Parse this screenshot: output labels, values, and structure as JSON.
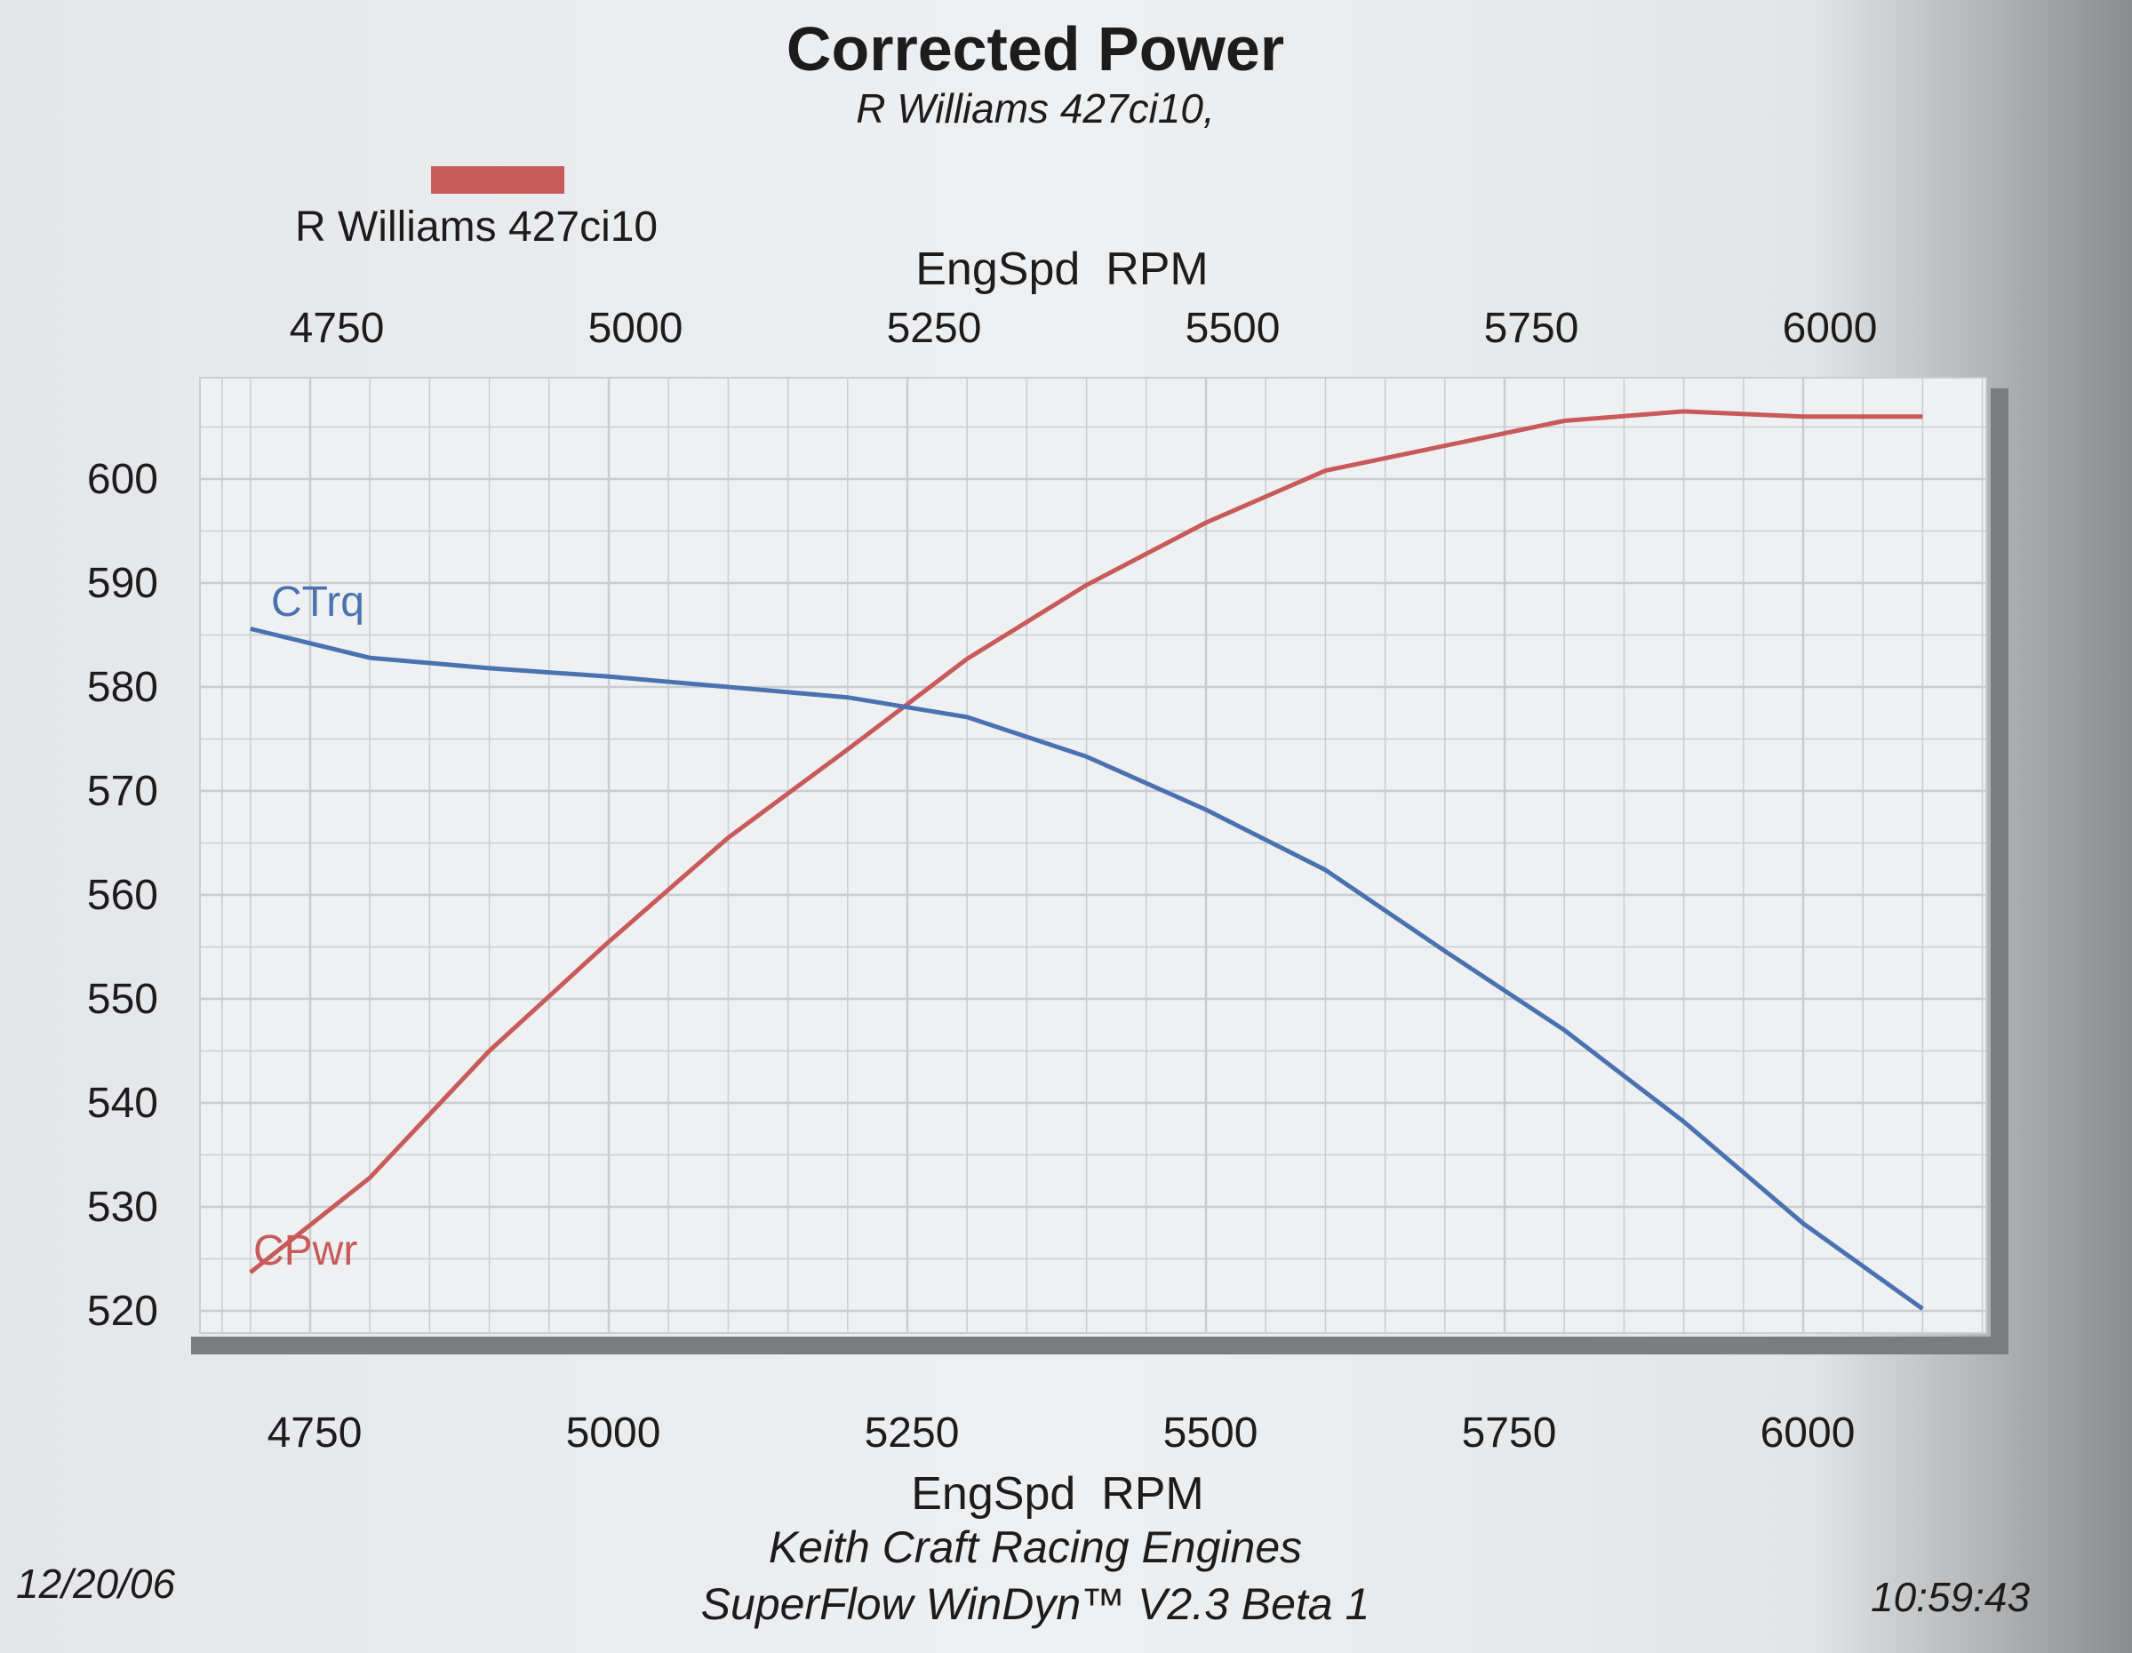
{
  "header": {
    "title": "Corrected Power",
    "subtitle": "R Williams 427ci10,"
  },
  "legend": {
    "label": "R Williams 427ci10",
    "swatch_color": "#c85a5a"
  },
  "axes": {
    "x_top_title": "EngSpd  RPM",
    "x_bottom_title": "EngSpd  RPM",
    "x_ticks": [
      "4750",
      "5000",
      "5250",
      "5500",
      "5750",
      "6000"
    ],
    "y_ticks": [
      "600",
      "590",
      "580",
      "570",
      "560",
      "550",
      "540",
      "530",
      "520"
    ]
  },
  "series_labels": {
    "torque": "CTrq",
    "power": "CPwr"
  },
  "footer": {
    "date": "12/20/06",
    "company": "Keith Craft Racing Engines",
    "software": "SuperFlow WinDyn™ V2.3 Beta 1",
    "time": "10:59:43"
  },
  "colors": {
    "power": "#c85a5a",
    "torque": "#4a72b0",
    "grid": "#c9ccd0",
    "shadow": "#7a7c80"
  },
  "chart_data": {
    "type": "line",
    "title": "Corrected Power",
    "subtitle": "R Williams 427ci10,",
    "xlabel": "EngSpd  RPM",
    "ylabel": "",
    "x": [
      4700,
      4800,
      4900,
      5000,
      5100,
      5200,
      5300,
      5400,
      5500,
      5600,
      5700,
      5800,
      5900,
      6000,
      6100
    ],
    "series": [
      {
        "name": "CPwr",
        "color": "#c85a5a",
        "values": [
          523.7,
          532.8,
          545,
          555.5,
          565.5,
          574,
          582.7,
          589.8,
          595.8,
          600.8,
          603.2,
          605.6,
          606.5,
          606,
          606
        ]
      },
      {
        "name": "CTrq",
        "color": "#4a72b0",
        "values": [
          585.6,
          582.8,
          581.8,
          581,
          580,
          579,
          577.1,
          573.3,
          568.2,
          562.4,
          554.6,
          547,
          538.2,
          528.4,
          520.2
        ]
      }
    ],
    "legend": [
      "R Williams 427ci10"
    ],
    "xlim": [
      4650,
      6150
    ],
    "ylim": [
      516,
      610
    ],
    "x_ticks": [
      4750,
      5000,
      5250,
      5500,
      5750,
      6000
    ],
    "y_ticks": [
      520,
      530,
      540,
      550,
      560,
      570,
      580,
      590,
      600
    ],
    "grid": true,
    "annotations": [
      "CTrq",
      "CPwr"
    ],
    "footer": [
      "12/20/06",
      "Keith Craft Racing Engines",
      "SuperFlow WinDyn™ V2.3 Beta 1",
      "10:59:43"
    ]
  }
}
